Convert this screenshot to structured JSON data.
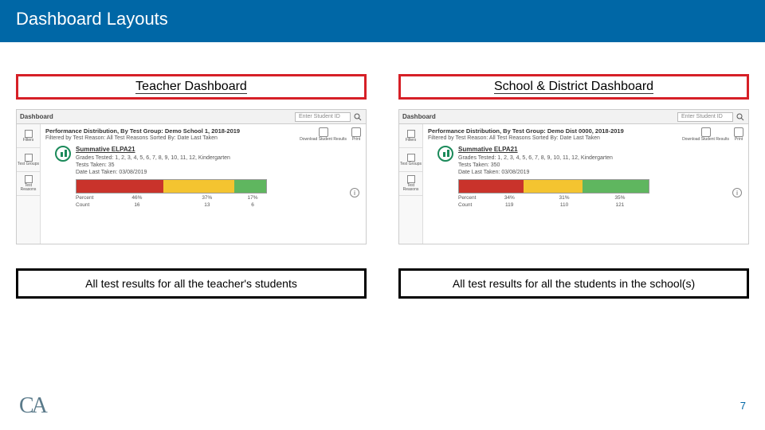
{
  "slide": {
    "title": "Dashboard Layouts",
    "page_number": "7",
    "logo_text": "CA",
    "header_bg": "#0067a6"
  },
  "columns": [
    {
      "heading": "Teacher Dashboard",
      "caption": "All test results for all the teacher's students",
      "dashboard": {
        "nav_title": "Dashboard",
        "search_placeholder": "Enter Student ID",
        "sidebar": [
          "Filters",
          "Test Groups",
          "Test Reasons"
        ],
        "perf_title": "Performance Distribution, By Test Group: Demo School 1, 2018-2019",
        "filter_line": "Filtered by Test Reason: All Test Reasons   Sorted By: Date Last Taken",
        "tools": [
          {
            "label": "Download Student Results"
          },
          {
            "label": "Print"
          }
        ],
        "card_title": "Summative ELPA21",
        "meta_grades_label": "Grades Tested:",
        "meta_grades": "1, 2, 3, 4, 5, 6, 7, 8, 9, 10, 11, 12, Kindergarten",
        "meta_taken_label": "Tests Taken:",
        "meta_taken": "35",
        "meta_date_label": "Date Last Taken:",
        "meta_date": "03/08/2019",
        "segments": [
          {
            "color": "#c9332b",
            "pct": 46,
            "percent_label": "46%",
            "count_label": "16"
          },
          {
            "color": "#f4c430",
            "pct": 37,
            "percent_label": "37%",
            "count_label": "13"
          },
          {
            "color": "#5fb65f",
            "pct": 17,
            "percent_label": "17%",
            "count_label": "6"
          }
        ],
        "axis_percent_label": "Percent",
        "axis_count_label": "Count"
      }
    },
    {
      "heading": "School & District Dashboard",
      "caption": "All test results for all the students in the school(s)",
      "dashboard": {
        "nav_title": "Dashboard",
        "search_placeholder": "Enter Student ID",
        "sidebar": [
          "Filters",
          "Test Groups",
          "Test Reasons"
        ],
        "perf_title": "Performance Distribution, By Test Group: Demo Dist 0000, 2018-2019",
        "filter_line": "Filtered by Test Reason: All Test Reasons   Sorted By: Date Last Taken",
        "tools": [
          {
            "label": "Download Student Results"
          },
          {
            "label": "Print"
          }
        ],
        "card_title": "Summative ELPA21",
        "meta_grades_label": "Grades Tested:",
        "meta_grades": "1, 2, 3, 4, 5, 6, 7, 8, 9, 10, 11, 12, Kindergarten",
        "meta_taken_label": "Tests Taken:",
        "meta_taken": "350",
        "meta_date_label": "Date Last Taken:",
        "meta_date": "03/08/2019",
        "segments": [
          {
            "color": "#c9332b",
            "pct": 34,
            "percent_label": "34%",
            "count_label": "119"
          },
          {
            "color": "#f4c430",
            "pct": 31,
            "percent_label": "31%",
            "count_label": "110"
          },
          {
            "color": "#5fb65f",
            "pct": 35,
            "percent_label": "35%",
            "count_label": "121"
          }
        ],
        "axis_percent_label": "Percent",
        "axis_count_label": "Count"
      }
    }
  ]
}
